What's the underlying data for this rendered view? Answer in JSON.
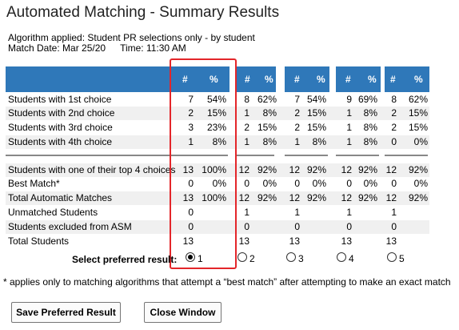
{
  "title": "Automated Matching - Summary Results",
  "algorithm_line": "Algorithm applied: Student PR selections only - by student",
  "match_date": "Match Date: Mar 25/20",
  "match_time": "Time: 11:30 AM",
  "header": {
    "count_label": "#",
    "pct_label": "%"
  },
  "rows": [
    {
      "label": "Students with 1st choice",
      "values": [
        [
          "7",
          "54%"
        ],
        [
          "8",
          "62%"
        ],
        [
          "7",
          "54%"
        ],
        [
          "9",
          "69%"
        ],
        [
          "8",
          "62%"
        ]
      ]
    },
    {
      "label": "Students with 2nd choice",
      "values": [
        [
          "2",
          "15%"
        ],
        [
          "1",
          "8%"
        ],
        [
          "2",
          "15%"
        ],
        [
          "1",
          "8%"
        ],
        [
          "2",
          "15%"
        ]
      ]
    },
    {
      "label": "Students with 3rd choice",
      "values": [
        [
          "3",
          "23%"
        ],
        [
          "2",
          "15%"
        ],
        [
          "2",
          "15%"
        ],
        [
          "1",
          "8%"
        ],
        [
          "2",
          "15%"
        ]
      ]
    },
    {
      "label": "Students with 4th choice",
      "values": [
        [
          "1",
          "8%"
        ],
        [
          "1",
          "8%"
        ],
        [
          "1",
          "8%"
        ],
        [
          "1",
          "8%"
        ],
        [
          "0",
          "0%"
        ]
      ]
    },
    {
      "label": "Students with one of their top 4 choices",
      "values": [
        [
          "13",
          "100%"
        ],
        [
          "12",
          "92%"
        ],
        [
          "12",
          "92%"
        ],
        [
          "12",
          "92%"
        ],
        [
          "12",
          "92%"
        ]
      ]
    },
    {
      "label": "Best Match*",
      "values": [
        [
          "0",
          "0%"
        ],
        [
          "0",
          "0%"
        ],
        [
          "0",
          "0%"
        ],
        [
          "0",
          "0%"
        ],
        [
          "0",
          "0%"
        ]
      ]
    },
    {
      "label": "Total Automatic Matches",
      "values": [
        [
          "13",
          "100%"
        ],
        [
          "12",
          "92%"
        ],
        [
          "12",
          "92%"
        ],
        [
          "12",
          "92%"
        ],
        [
          "12",
          "92%"
        ]
      ]
    },
    {
      "label": "Unmatched Students",
      "values": [
        [
          "0",
          ""
        ],
        [
          "1",
          ""
        ],
        [
          "1",
          ""
        ],
        [
          "1",
          ""
        ],
        [
          "1",
          ""
        ]
      ]
    },
    {
      "label": "Students excluded from ASM",
      "values": [
        [
          "0",
          ""
        ],
        [
          "0",
          ""
        ],
        [
          "0",
          ""
        ],
        [
          "0",
          ""
        ],
        [
          "0",
          ""
        ]
      ]
    },
    {
      "label": "Total Students",
      "values": [
        [
          "13",
          ""
        ],
        [
          "13",
          ""
        ],
        [
          "13",
          ""
        ],
        [
          "13",
          ""
        ],
        [
          "13",
          ""
        ]
      ]
    }
  ],
  "select_label": "Select preferred result:",
  "results": [
    "1",
    "2",
    "3",
    "4",
    "5"
  ],
  "selected_result": "1",
  "footnote": "* applies only to matching algorithms that attempt a “best match” after attempting to make an exact match",
  "buttons": {
    "save": "Save Preferred Result",
    "close": "Close Window"
  },
  "colors": {
    "header_bg": "#2f78b9",
    "highlight_border": "#e3262a"
  }
}
